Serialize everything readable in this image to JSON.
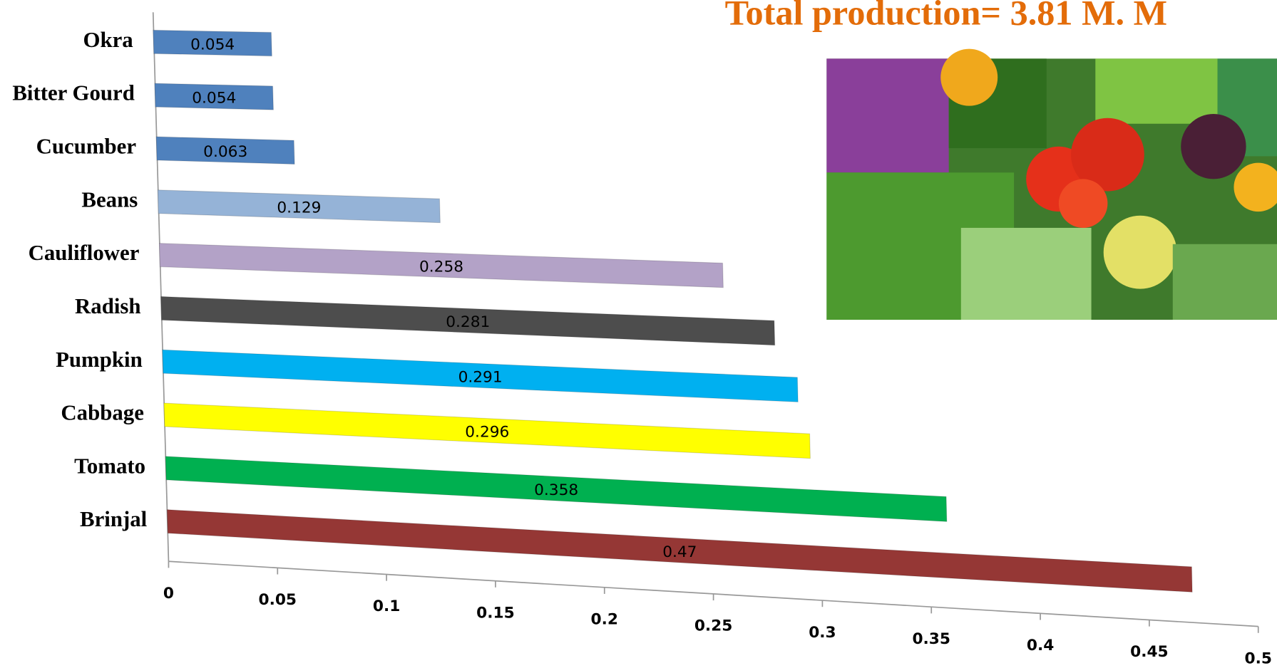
{
  "chart_data": {
    "type": "bar",
    "orientation": "horizontal",
    "title": "Total production= 3.81 M. M",
    "categories": [
      "Okra",
      "Bitter Gourd",
      "Cucumber",
      "Beans",
      "Cauliflower",
      "Radish",
      "Pumpkin",
      "Cabbage",
      "Tomato",
      "Brinjal"
    ],
    "values": [
      0.054,
      0.054,
      0.063,
      0.129,
      0.258,
      0.281,
      0.291,
      0.296,
      0.358,
      0.47
    ],
    "colors": [
      "#4f81bd",
      "#4f81bd",
      "#4f81bd",
      "#95b3d7",
      "#b3a2c7",
      "#4d4d4d",
      "#00b0f0",
      "#ffff00",
      "#00b050",
      "#953735"
    ],
    "xlim": [
      0,
      0.5
    ],
    "xticks": [
      0,
      0.05,
      0.1,
      0.15,
      0.2,
      0.25,
      0.3,
      0.35,
      0.4,
      0.45,
      0.5
    ]
  }
}
